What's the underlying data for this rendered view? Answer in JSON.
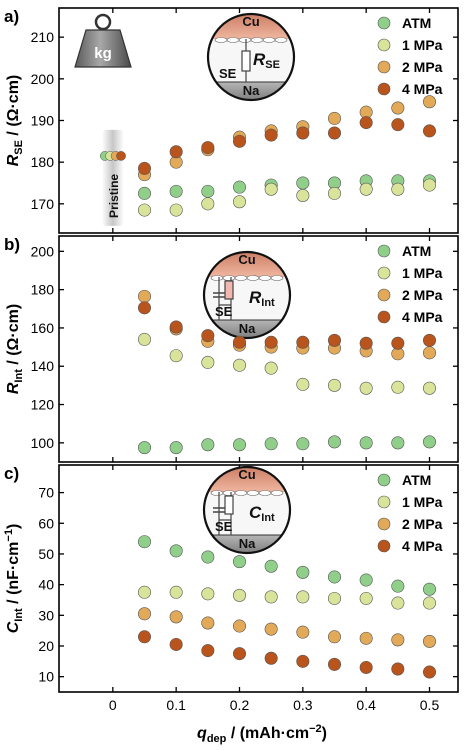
{
  "figure": {
    "x_axis": {
      "label_main": "q",
      "label_sub": "dep",
      "label_rest": " / (mAh·cm",
      "label_sup": "−2",
      "label_end": ")",
      "ticks": [
        0,
        0.1,
        0.2,
        0.3,
        0.4,
        0.5
      ],
      "tick_labels": [
        "0",
        "0.1",
        "0.2",
        "0.3",
        "0.4",
        "0.5"
      ],
      "xlim": [
        -0.085,
        0.545
      ]
    },
    "colors": {
      "ATM": "#8fcf8a",
      "1 MPa": "#d9e39a",
      "2 MPa": "#e2a958",
      "4 MPa": "#b9541d"
    },
    "icons": [
      "weight-kg-icon",
      "cell-schematic-icon"
    ],
    "weight_label": "kg",
    "pristine_label": "Pristine",
    "inset_labels": {
      "cu": "Cu",
      "se": "SE",
      "na": "Na"
    }
  },
  "chart_data": [
    {
      "type": "scatter",
      "panel_label": "a)",
      "ylabel_main": "R",
      "ylabel_sub": "SE",
      "ylabel_rest": " / (Ω·cm)",
      "inset_main": "R",
      "inset_sub": "SE",
      "ylim": [
        163,
        217
      ],
      "yticks": [
        170,
        180,
        190,
        200,
        210
      ],
      "legend": [
        "ATM",
        "1 MPa",
        "2 MPa",
        "4 MPa"
      ],
      "pristine": {
        "x": 0,
        "y": 181.5
      },
      "series": [
        {
          "name": "ATM",
          "x": [
            0.05,
            0.1,
            0.15,
            0.2,
            0.25,
            0.3,
            0.35,
            0.4,
            0.45,
            0.5
          ],
          "y": [
            172.5,
            173,
            173,
            174,
            174.5,
            175,
            175,
            175.5,
            175.5,
            175.5
          ]
        },
        {
          "name": "1 MPa",
          "x": [
            0.05,
            0.1,
            0.15,
            0.2,
            0.25,
            0.3,
            0.35,
            0.4,
            0.45,
            0.5
          ],
          "y": [
            168.5,
            168.5,
            170,
            170.5,
            173.5,
            172,
            172.5,
            173.5,
            173.5,
            174.5
          ]
        },
        {
          "name": "2 MPa",
          "x": [
            0.05,
            0.1,
            0.15,
            0.2,
            0.25,
            0.3,
            0.35,
            0.4,
            0.45,
            0.5
          ],
          "y": [
            177,
            180,
            183,
            186,
            187.5,
            188.5,
            190.5,
            192,
            193,
            194.5
          ]
        },
        {
          "name": "4 MPa",
          "x": [
            0.05,
            0.1,
            0.15,
            0.2,
            0.25,
            0.3,
            0.35,
            0.4,
            0.45,
            0.5
          ],
          "y": [
            178.5,
            182.5,
            183.5,
            185,
            186.5,
            187,
            187,
            189.5,
            189,
            187.5
          ]
        }
      ]
    },
    {
      "type": "scatter",
      "panel_label": "b)",
      "ylabel_main": "R",
      "ylabel_sub": "Int",
      "ylabel_rest": " / (Ω·cm)",
      "inset_main": "R",
      "inset_sub": "Int",
      "ylim": [
        90,
        208
      ],
      "yticks": [
        100,
        120,
        140,
        160,
        180,
        200
      ],
      "legend": [
        "ATM",
        "1 MPa",
        "2 MPa",
        "4 MPa"
      ],
      "series": [
        {
          "name": "ATM",
          "x": [
            0.05,
            0.1,
            0.15,
            0.2,
            0.25,
            0.3,
            0.35,
            0.4,
            0.45,
            0.5
          ],
          "y": [
            97.5,
            97.5,
            99,
            99,
            99.5,
            99.5,
            100.5,
            100,
            100,
            100.5
          ]
        },
        {
          "name": "1 MPa",
          "x": [
            0.05,
            0.1,
            0.15,
            0.2,
            0.25,
            0.3,
            0.35,
            0.4,
            0.45,
            0.5
          ],
          "y": [
            154,
            145.5,
            142,
            140.5,
            139,
            130.5,
            130,
            128.5,
            129,
            128.5
          ]
        },
        {
          "name": "2 MPa",
          "x": [
            0.05,
            0.1,
            0.15,
            0.2,
            0.25,
            0.3,
            0.35,
            0.4,
            0.45,
            0.5
          ],
          "y": [
            176.5,
            159.5,
            153,
            151,
            150,
            149.5,
            149.5,
            148,
            146.5,
            147
          ]
        },
        {
          "name": "4 MPa",
          "x": [
            0.05,
            0.1,
            0.15,
            0.2,
            0.25,
            0.3,
            0.35,
            0.4,
            0.45,
            0.5
          ],
          "y": [
            170.5,
            160.5,
            156,
            152.5,
            152.5,
            152.5,
            153.5,
            152,
            152,
            153.5
          ]
        }
      ]
    },
    {
      "type": "scatter",
      "panel_label": "c)",
      "ylabel_main": "C",
      "ylabel_sub": "Int",
      "ylabel_rest": " / (nF·cm",
      "ylabel_sup": "−1",
      "ylabel_end": ")",
      "inset_main": "C",
      "inset_sub": "Int",
      "ylim": [
        5,
        79
      ],
      "yticks": [
        10,
        20,
        30,
        40,
        50,
        60,
        70
      ],
      "legend": [
        "ATM",
        "1 MPa",
        "2 MPa",
        "4 MPa"
      ],
      "series": [
        {
          "name": "ATM",
          "x": [
            0.05,
            0.1,
            0.15,
            0.2,
            0.25,
            0.3,
            0.35,
            0.4,
            0.45,
            0.5
          ],
          "y": [
            54,
            51,
            49,
            47.5,
            46,
            44,
            42.5,
            41.5,
            39.5,
            38.5
          ]
        },
        {
          "name": "1 MPa",
          "x": [
            0.05,
            0.1,
            0.15,
            0.2,
            0.25,
            0.3,
            0.35,
            0.4,
            0.45,
            0.5
          ],
          "y": [
            37.5,
            37.5,
            37,
            36.5,
            36,
            36,
            35.5,
            35.5,
            34,
            34
          ]
        },
        {
          "name": "2 MPa",
          "x": [
            0.05,
            0.1,
            0.15,
            0.2,
            0.25,
            0.3,
            0.35,
            0.4,
            0.45,
            0.5
          ],
          "y": [
            30.5,
            29.5,
            27.5,
            26.5,
            25.5,
            24.5,
            23,
            22.5,
            22,
            21.5
          ]
        },
        {
          "name": "4 MPa",
          "x": [
            0.05,
            0.1,
            0.15,
            0.2,
            0.25,
            0.3,
            0.35,
            0.4,
            0.45,
            0.5
          ],
          "y": [
            23,
            20.5,
            18.5,
            17.5,
            16,
            15,
            14,
            13,
            12.5,
            11.5
          ]
        }
      ]
    }
  ]
}
